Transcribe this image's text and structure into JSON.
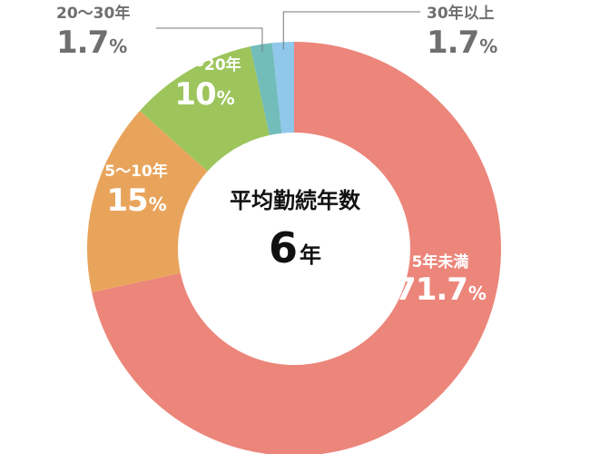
{
  "chart_data": {
    "type": "pie",
    "variant": "donut",
    "categories": [
      "5年未満",
      "5～10年",
      "10～20年",
      "20～30年",
      "30年以上"
    ],
    "values": [
      71.7,
      15,
      10,
      1.7,
      1.7
    ],
    "value_labels": [
      "71.7",
      "15",
      "10",
      "1.7",
      "1.7"
    ],
    "unit": "%",
    "colors": [
      "#ec857a",
      "#e9a45c",
      "#9dc55c",
      "#72bcba",
      "#8fc8ea"
    ],
    "center": {
      "title": "平均勤続年数",
      "value": "6",
      "unit": "年"
    },
    "legend": "none"
  }
}
